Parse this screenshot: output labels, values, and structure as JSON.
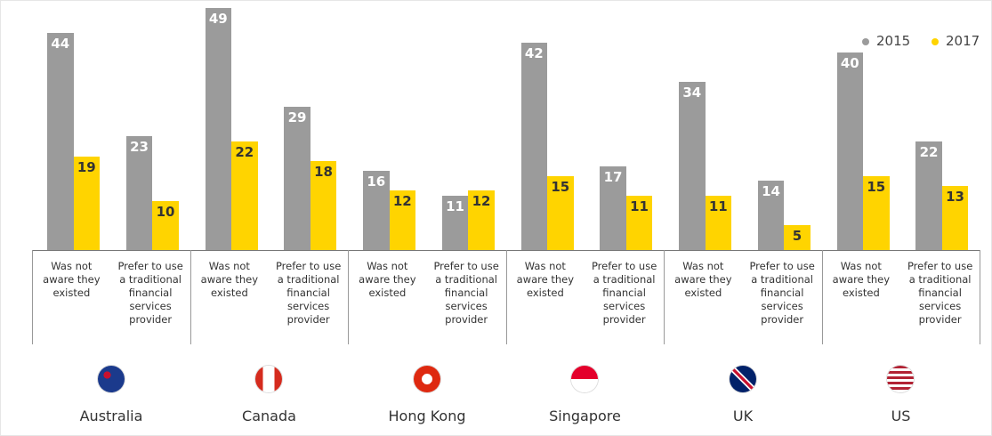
{
  "chart_data": {
    "type": "bar",
    "groups": [
      "Australia",
      "Canada",
      "Hong Kong",
      "Singapore",
      "UK",
      "US"
    ],
    "categories": [
      "Was not aware they existed",
      "Prefer to use a traditional financial services provider",
      "Was not aware they existed",
      "Prefer to use a traditional financial services provider",
      "Was not aware they existed",
      "Prefer to use a traditional financial services provider",
      "Was not aware they existed",
      "Prefer to use a traditional financial services provider",
      "Was not aware they existed",
      "Prefer to use a traditional financial services provider",
      "Was not aware they existed",
      "Prefer to use a traditional financial services provider"
    ],
    "series": [
      {
        "name": "2015",
        "color": "#9b9b9b",
        "values": [
          44,
          23,
          49,
          29,
          16,
          11,
          42,
          17,
          34,
          14,
          40,
          22
        ]
      },
      {
        "name": "2017",
        "color": "#ffd400",
        "values": [
          19,
          10,
          22,
          18,
          12,
          12,
          15,
          11,
          11,
          5,
          15,
          13
        ]
      }
    ],
    "legend": "top-right"
  }
}
